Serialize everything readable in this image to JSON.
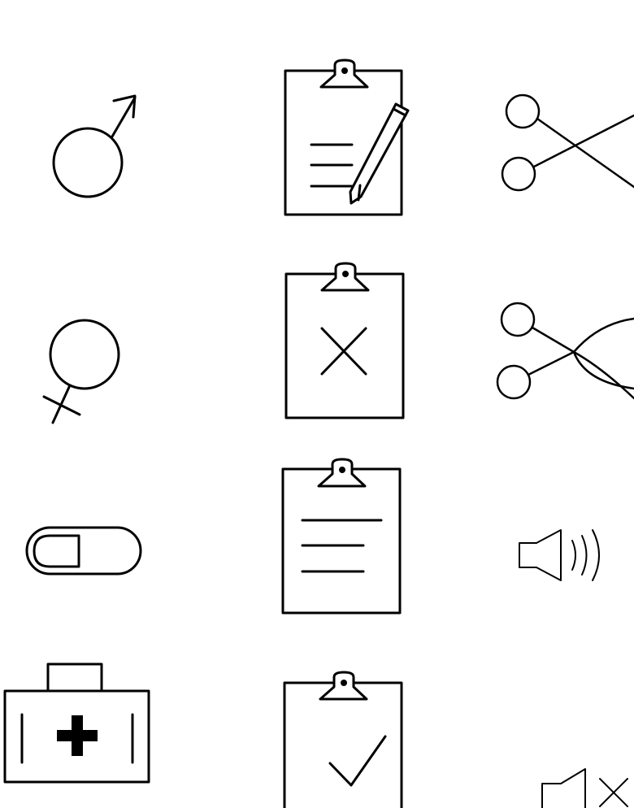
{
  "sheet": {
    "background": "#ffffff",
    "stroke_color": "#000000",
    "icons": [
      {
        "name": "male-symbol-icon"
      },
      {
        "name": "clipboard-edit-icon"
      },
      {
        "name": "scissors-open-icon"
      },
      {
        "name": "female-symbol-icon"
      },
      {
        "name": "clipboard-delete-icon"
      },
      {
        "name": "scissors-closed-icon"
      },
      {
        "name": "toggle-switch-off-icon"
      },
      {
        "name": "clipboard-list-icon"
      },
      {
        "name": "speaker-volume-icon"
      },
      {
        "name": "first-aid-kit-icon"
      },
      {
        "name": "clipboard-check-icon"
      },
      {
        "name": "speaker-mute-icon"
      }
    ]
  }
}
